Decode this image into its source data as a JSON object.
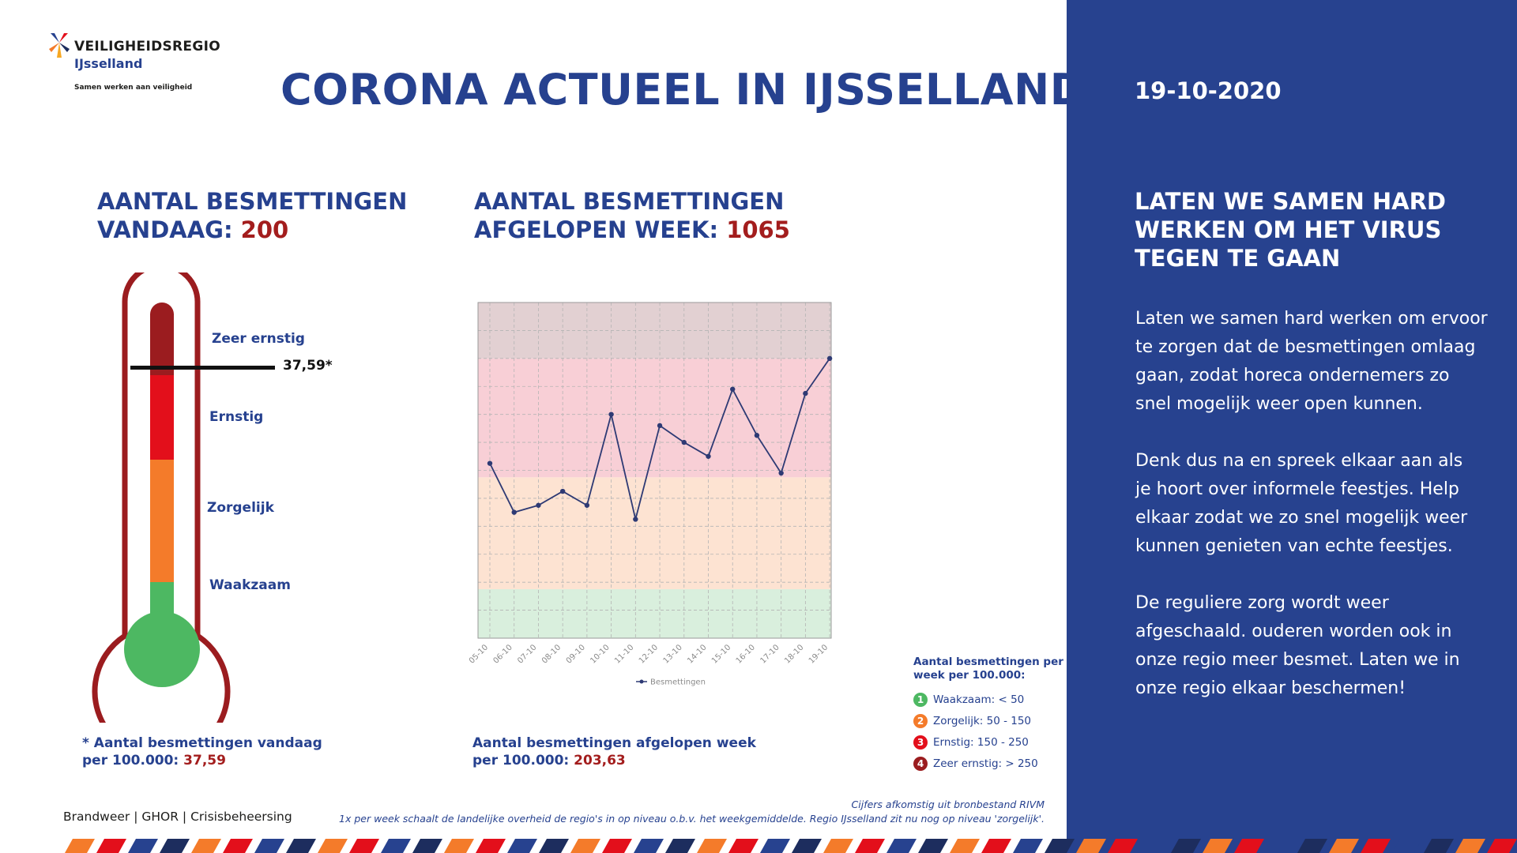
{
  "logo": {
    "name": "VEILIGHEIDSREGIO",
    "region": "IJsselland",
    "tagline": "Samen werken aan veiligheid"
  },
  "title": "CORONA ACTUEEL IN IJSSELLAND",
  "today": {
    "title_line1": "AANTAL BESMETTINGEN",
    "title_line2_prefix": "VANDAAG:",
    "value": "200",
    "marker_value": "37,59*",
    "levels": [
      {
        "label": "Zeer ernstig",
        "color": "#9b1c1f"
      },
      {
        "label": "Ernstig",
        "color": "#e30f1b"
      },
      {
        "label": "Zorgelijk",
        "color": "#f47b2a"
      },
      {
        "label": "Waakzaam",
        "color": "#4db862"
      }
    ],
    "thermometer_level": 37.59,
    "footnote_line1": "* Aantal besmettingen vandaag",
    "footnote_line2_prefix": "per 100.000:",
    "footnote_value": "37,59"
  },
  "week": {
    "title_line1": "AANTAL BESMETTINGEN",
    "title_line2_prefix": "AFGELOPEN WEEK:",
    "value": "1065",
    "footnote_line1": "Aantal besmettingen afgelopen week",
    "footnote_line2_prefix": "per 100.000:",
    "footnote_value": "203,63"
  },
  "chart_data": {
    "type": "line",
    "x": [
      "05-10",
      "06-10",
      "07-10",
      "08-10",
      "09-10",
      "10-10",
      "11-10",
      "12-10",
      "13-10",
      "14-10",
      "15-10",
      "16-10",
      "17-10",
      "18-10",
      "19-10"
    ],
    "series": [
      {
        "name": "Besmettingen",
        "color": "#2e3a74",
        "values": [
          125,
          90,
          95,
          105,
          95,
          160,
          85,
          152,
          140,
          130,
          178,
          145,
          118,
          175,
          200
        ]
      }
    ],
    "ylim": [
      0,
      240
    ],
    "bands": [
      {
        "from": 0,
        "to": 35,
        "color": "#d9efdd"
      },
      {
        "from": 35,
        "to": 115,
        "color": "#fde3d2"
      },
      {
        "from": 115,
        "to": 200,
        "color": "#f8cfd6"
      },
      {
        "from": 200,
        "to": 240,
        "color": "#e2d0d2"
      }
    ],
    "grid": true,
    "legend": "bottom"
  },
  "legend": {
    "title_line1": "Aantal besmettingen per",
    "title_line2": "week per 100.000:",
    "items": [
      {
        "num": "1",
        "label": "Waakzaam: < 50",
        "color": "#4db862"
      },
      {
        "num": "2",
        "label": "Zorgelijk: 50 - 150",
        "color": "#f47b2a"
      },
      {
        "num": "3",
        "label": "Ernstig: 150 - 250",
        "color": "#e30f1b"
      },
      {
        "num": "4",
        "label": "Zeer ernstig: > 250",
        "color": "#9b1c1f"
      }
    ]
  },
  "footer": {
    "orgs": "Brandweer | GHOR | Crisisbeheersing",
    "source_line1": "Cijfers afkomstig uit bronbestand RIVM",
    "source_line2": "1x per week schaalt de landelijke overheid de regio's in op niveau o.b.v. het weekgemiddelde. Regio IJsselland zit nu nog op niveau 'zorgelijk'."
  },
  "panel": {
    "date": "19-10-2020",
    "title_lines": [
      "LATEN WE SAMEN HARD",
      "WERKEN OM HET VIRUS",
      "TEGEN TE GAAN"
    ],
    "paragraphs": [
      [
        "Laten we samen hard werken om ervoor",
        "te zorgen dat de besmettingen omlaag",
        "gaan, zodat horeca ondernemers zo",
        "snel mogelijk weer open kunnen."
      ],
      [
        "Denk dus na en spreek elkaar aan als",
        "je hoort over informele feestjes. Help",
        "elkaar zodat we zo snel mogelijk weer",
        "kunnen genieten van echte feestjes."
      ],
      [
        "De reguliere zorg wordt weer",
        "afgeschaald. ouderen worden ook in",
        "onze regio meer besmet. Laten we in",
        "onze regio elkaar beschermen!"
      ]
    ]
  },
  "colors": {
    "brand_blue": "#27428f",
    "accent_red": "#a31d1d",
    "stripe_colors": [
      "#f47b2a",
      "#e30f1b",
      "#27428f",
      "#1d2d5e"
    ]
  }
}
